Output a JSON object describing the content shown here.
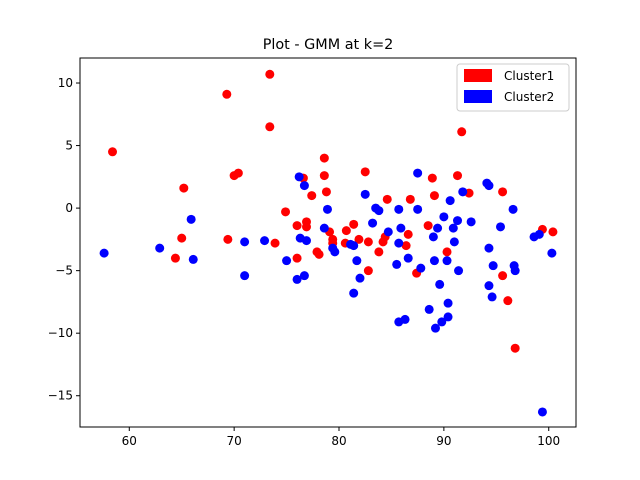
{
  "chart_data": {
    "type": "scatter",
    "title": "Plot - GMM at k=2",
    "xlabel": "",
    "ylabel": "",
    "xlim": [
      55.3,
      102.6
    ],
    "ylim": [
      -17.5,
      12.0
    ],
    "xticks": [
      60,
      70,
      80,
      90,
      100
    ],
    "yticks": [
      -15,
      -10,
      -5,
      0,
      5,
      10
    ],
    "grid": false,
    "legend_position": "top-right",
    "series": [
      {
        "name": "Cluster1",
        "color": "#ff0000",
        "points": [
          [
            58.4,
            4.5
          ],
          [
            64.4,
            -4.0
          ],
          [
            65.0,
            -2.4
          ],
          [
            65.2,
            1.6
          ],
          [
            69.3,
            9.1
          ],
          [
            69.4,
            -2.5
          ],
          [
            70.0,
            2.6
          ],
          [
            70.4,
            2.8
          ],
          [
            73.4,
            10.7
          ],
          [
            73.4,
            6.5
          ],
          [
            73.9,
            -2.8
          ],
          [
            74.9,
            -0.3
          ],
          [
            76.0,
            -1.4
          ],
          [
            76.0,
            -4.0
          ],
          [
            76.6,
            2.4
          ],
          [
            76.9,
            -1.5
          ],
          [
            76.9,
            -1.1
          ],
          [
            77.4,
            1.0
          ],
          [
            77.9,
            -3.5
          ],
          [
            78.1,
            -3.7
          ],
          [
            78.6,
            4.0
          ],
          [
            78.6,
            2.6
          ],
          [
            78.8,
            1.3
          ],
          [
            79.1,
            -1.9
          ],
          [
            79.4,
            -2.5
          ],
          [
            79.4,
            -2.8
          ],
          [
            80.6,
            -2.8
          ],
          [
            80.7,
            -1.8
          ],
          [
            81.4,
            -1.3
          ],
          [
            81.9,
            -2.5
          ],
          [
            82.5,
            2.9
          ],
          [
            82.8,
            -2.7
          ],
          [
            82.8,
            -5.0
          ],
          [
            83.8,
            -3.5
          ],
          [
            84.2,
            -2.7
          ],
          [
            84.4,
            -2.3
          ],
          [
            84.6,
            0.7
          ],
          [
            86.4,
            -3.0
          ],
          [
            86.6,
            -2.1
          ],
          [
            86.8,
            0.7
          ],
          [
            87.4,
            -5.2
          ],
          [
            88.5,
            -1.4
          ],
          [
            88.9,
            2.4
          ],
          [
            89.1,
            1.0
          ],
          [
            90.3,
            -3.5
          ],
          [
            91.3,
            2.6
          ],
          [
            91.7,
            6.1
          ],
          [
            92.4,
            1.2
          ],
          [
            95.6,
            1.3
          ],
          [
            95.6,
            -5.4
          ],
          [
            96.1,
            -7.4
          ],
          [
            96.8,
            -11.2
          ],
          [
            99.4,
            -1.7
          ],
          [
            100.4,
            -1.9
          ]
        ]
      },
      {
        "name": "Cluster2",
        "color": "#0000ff",
        "points": [
          [
            57.6,
            -3.6
          ],
          [
            62.9,
            -3.2
          ],
          [
            65.9,
            -0.9
          ],
          [
            66.1,
            -4.1
          ],
          [
            71.0,
            -2.7
          ],
          [
            71.0,
            -5.4
          ],
          [
            72.9,
            -2.6
          ],
          [
            75.0,
            -4.2
          ],
          [
            76.0,
            -5.7
          ],
          [
            76.2,
            2.5
          ],
          [
            76.3,
            -2.4
          ],
          [
            76.7,
            1.8
          ],
          [
            76.7,
            -5.4
          ],
          [
            76.9,
            -2.6
          ],
          [
            78.6,
            -1.6
          ],
          [
            78.9,
            -0.1
          ],
          [
            79.4,
            -3.2
          ],
          [
            79.6,
            -3.5
          ],
          [
            81.1,
            -2.9
          ],
          [
            81.4,
            -3.0
          ],
          [
            81.4,
            -6.8
          ],
          [
            81.7,
            -4.2
          ],
          [
            82.0,
            -5.6
          ],
          [
            82.5,
            1.1
          ],
          [
            83.2,
            -1.2
          ],
          [
            83.5,
            0.0
          ],
          [
            83.8,
            -0.2
          ],
          [
            84.7,
            -1.9
          ],
          [
            85.5,
            -4.5
          ],
          [
            85.7,
            -9.1
          ],
          [
            85.7,
            -0.1
          ],
          [
            85.7,
            -2.8
          ],
          [
            85.9,
            -1.6
          ],
          [
            86.3,
            -8.9
          ],
          [
            86.6,
            -4.0
          ],
          [
            87.5,
            2.8
          ],
          [
            87.5,
            -0.1
          ],
          [
            87.8,
            -4.8
          ],
          [
            88.6,
            -8.1
          ],
          [
            89.0,
            -2.3
          ],
          [
            89.1,
            -4.2
          ],
          [
            89.2,
            -9.6
          ],
          [
            89.4,
            -1.6
          ],
          [
            89.6,
            -6.1
          ],
          [
            89.8,
            -9.1
          ],
          [
            90.0,
            -0.7
          ],
          [
            90.3,
            -4.2
          ],
          [
            90.4,
            -8.7
          ],
          [
            90.4,
            -7.6
          ],
          [
            90.6,
            0.6
          ],
          [
            90.9,
            -1.6
          ],
          [
            91.0,
            -2.7
          ],
          [
            91.3,
            -1.0
          ],
          [
            91.4,
            -5.0
          ],
          [
            91.8,
            1.3
          ],
          [
            92.6,
            -1.1
          ],
          [
            94.1,
            2.0
          ],
          [
            94.3,
            -3.2
          ],
          [
            94.3,
            1.8
          ],
          [
            94.3,
            -6.2
          ],
          [
            94.6,
            -7.1
          ],
          [
            94.7,
            -4.6
          ],
          [
            95.4,
            -1.5
          ],
          [
            96.6,
            -0.1
          ],
          [
            96.7,
            -4.6
          ],
          [
            96.8,
            -5.0
          ],
          [
            98.6,
            -2.3
          ],
          [
            99.1,
            -2.1
          ],
          [
            99.4,
            -16.3
          ],
          [
            100.3,
            -3.6
          ]
        ]
      }
    ]
  }
}
